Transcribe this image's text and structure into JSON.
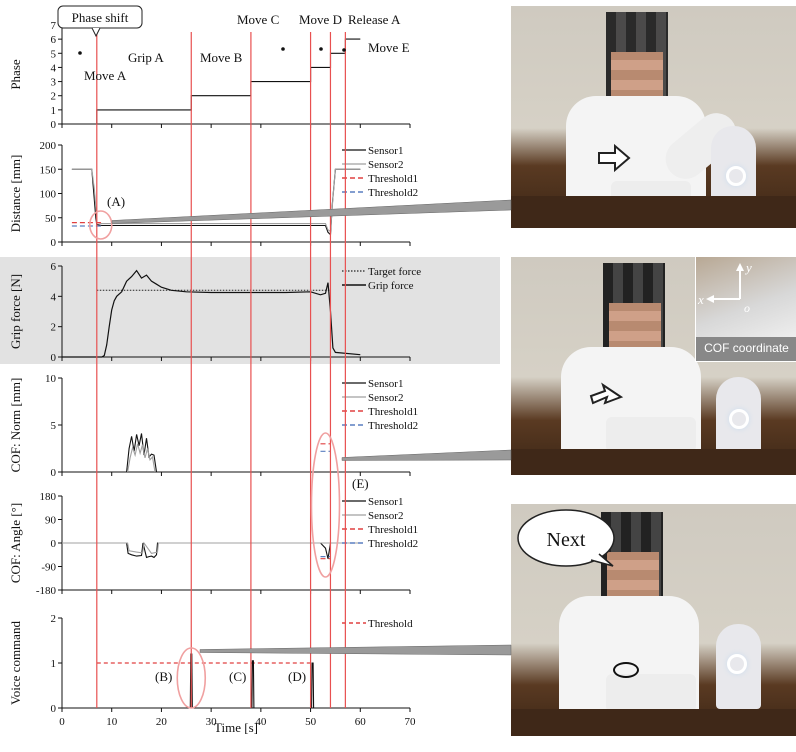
{
  "chart_data": [
    {
      "type": "line",
      "ylabel": "Phase",
      "ylim": [
        0,
        7
      ],
      "yticks": [
        0,
        1,
        2,
        3,
        4,
        5,
        6,
        7
      ],
      "series": [
        {
          "name": "Phase",
          "x": [
            0,
            7,
            7,
            26,
            26,
            38,
            38,
            50,
            50,
            54,
            54,
            57,
            57,
            60
          ],
          "y": [
            0,
            0,
            1,
            1,
            2,
            2,
            3,
            3,
            4,
            4,
            5,
            5,
            6,
            6
          ]
        }
      ],
      "annotations": [
        "Phase shift",
        "Move A",
        "Grip A",
        "Move B",
        "Move C",
        "Move D",
        "Release A",
        "Move E"
      ]
    },
    {
      "type": "line",
      "ylabel": "Distance [mm]",
      "ylim": [
        0,
        200
      ],
      "yticks": [
        0,
        50,
        100,
        150,
        200
      ],
      "series": [
        {
          "name": "Sensor1",
          "x": [
            2,
            6,
            6.4,
            6.8,
            7,
            8,
            50,
            53,
            53.5,
            54,
            54.4,
            55,
            60
          ],
          "y": [
            150,
            150,
            100,
            50,
            36,
            34,
            34,
            34,
            20,
            15,
            80,
            150,
            150
          ]
        },
        {
          "name": "Sensor2",
          "x": [
            2,
            6,
            6.5,
            6.9,
            7,
            8,
            50,
            53,
            53.5,
            54,
            54.5,
            55,
            60
          ],
          "y": [
            150,
            150,
            110,
            60,
            40,
            38,
            38,
            38,
            25,
            22,
            90,
            150,
            150
          ]
        },
        {
          "name": "Threshold1",
          "x": [
            2,
            8
          ],
          "y": [
            40,
            40
          ]
        },
        {
          "name": "Threshold2",
          "x": [
            2,
            8
          ],
          "y": [
            33,
            33
          ]
        }
      ],
      "annotations": [
        "(A)"
      ]
    },
    {
      "type": "line",
      "ylabel": "Grip force [N]",
      "ylim": [
        0,
        6
      ],
      "yticks": [
        0,
        2,
        4,
        6
      ],
      "series": [
        {
          "name": "Target force",
          "x": [
            7,
            54
          ],
          "y": [
            4.4,
            4.4
          ]
        },
        {
          "name": "Grip force",
          "x": [
            0,
            8,
            8.5,
            9,
            9.5,
            10,
            10.5,
            11,
            12,
            13,
            14,
            15,
            16,
            17,
            18,
            19,
            20,
            22,
            25,
            30,
            35,
            40,
            45,
            50,
            52,
            53,
            53.5,
            54,
            54.5,
            55,
            60
          ],
          "y": [
            0,
            0,
            0.1,
            0.8,
            2,
            3.1,
            3.7,
            4,
            4.3,
            5,
            5.3,
            5.7,
            5.2,
            5.4,
            5,
            4.8,
            4.6,
            4.4,
            4.3,
            4.25,
            4.25,
            4.25,
            4.25,
            4.3,
            4.1,
            4.2,
            4.9,
            3,
            0.6,
            0.3,
            0.15
          ]
        }
      ]
    },
    {
      "type": "line",
      "ylabel": "COF: Norm [mm]",
      "ylim": [
        0,
        10
      ],
      "yticks": [
        0,
        5,
        10
      ],
      "series": [
        {
          "name": "Sensor1",
          "x": [
            13,
            13.5,
            14,
            14.5,
            15,
            15.5,
            16,
            16.5,
            17,
            17.5,
            18,
            18.5,
            19
          ],
          "y": [
            0,
            2.5,
            3.8,
            2.2,
            4,
            2.8,
            4.1,
            1.8,
            3.6,
            1.6,
            1.9,
            1.8,
            0
          ]
        },
        {
          "name": "Sensor2",
          "x": [
            13.2,
            13.7,
            14.2,
            14.7,
            15.2,
            15.7,
            16.2,
            16.7,
            17.2,
            17.7,
            18.2,
            18.7
          ],
          "y": [
            0,
            1.5,
            2.6,
            1.8,
            3,
            2,
            2.9,
            1.5,
            2.5,
            1.3,
            1.6,
            0
          ]
        },
        {
          "name": "Threshold1",
          "x": [
            52,
            54
          ],
          "y": [
            3,
            3
          ]
        },
        {
          "name": "Threshold2",
          "x": [
            52,
            54
          ],
          "y": [
            2.2,
            2.2
          ]
        }
      ],
      "annotations": [
        "(E)"
      ]
    },
    {
      "type": "line",
      "ylabel": "COF: Angle [°]",
      "ylim": [
        -180,
        180
      ],
      "yticks": [
        -180,
        -90,
        0,
        90,
        180
      ],
      "series": [
        {
          "name": "Sensor1",
          "x": [
            0,
            13,
            13.3,
            14,
            15,
            16,
            16.3,
            17,
            17.5,
            18,
            18.5,
            19,
            19.2,
            52,
            53,
            53.5,
            54,
            60
          ],
          "y": [
            0,
            0,
            -40,
            -45,
            -50,
            -48,
            0,
            -55,
            -52,
            -50,
            -55,
            -45,
            0,
            0,
            -20,
            -60,
            0,
            0
          ]
        },
        {
          "name": "Sensor2",
          "x": [
            0,
            13.2,
            13.5,
            15,
            16.2,
            16.5,
            18,
            19.2,
            19.4,
            60
          ],
          "y": [
            0,
            0,
            -30,
            -35,
            -38,
            0,
            -40,
            -35,
            0,
            0
          ]
        },
        {
          "name": "Threshold1",
          "x": [
            52,
            54
          ],
          "y": [
            -60,
            -60
          ]
        },
        {
          "name": "Threshold2",
          "x": [
            52,
            54
          ],
          "y": [
            -52,
            -52
          ]
        }
      ]
    },
    {
      "type": "line",
      "ylabel": "Voice command",
      "xlabel": "Time [s]",
      "ylim": [
        0,
        2
      ],
      "xlim": [
        0,
        70
      ],
      "yticks": [
        0,
        1,
        2
      ],
      "xticks": [
        0,
        10,
        20,
        30,
        40,
        50,
        60,
        70
      ],
      "series": [
        {
          "name": "Threshold",
          "x": [
            7,
            50
          ],
          "y": [
            1,
            1
          ]
        },
        {
          "name": "Voice",
          "x": [
            0,
            25.8,
            25.9,
            26.1,
            26.2,
            38.2,
            38.3,
            38.5,
            38.6,
            50.2,
            50.3,
            50.5,
            50.6,
            60
          ],
          "y": [
            0,
            0,
            1.2,
            1.2,
            0,
            0,
            1.05,
            1.05,
            0,
            0,
            1,
            1,
            0,
            0
          ]
        }
      ],
      "annotations": [
        "(B)",
        "(C)",
        "(D)"
      ]
    }
  ],
  "phase_shift_times": [
    7,
    26,
    38,
    50,
    54,
    57
  ],
  "legend_labels": {
    "distance": [
      "Sensor1",
      "Sensor2",
      "Threshold1",
      "Threshold2"
    ],
    "grip": [
      "Target force",
      "Grip force"
    ],
    "norm": [
      "Sensor1",
      "Sensor2",
      "Threshold1",
      "Threshold2"
    ],
    "angle": [
      "Sensor1",
      "Sensor2",
      "Threshold1",
      "Threshold2"
    ],
    "voice": [
      "Threshold"
    ]
  },
  "photos": {
    "inset_caption": "COF coordinate",
    "inset_axis_x": "x",
    "inset_axis_y": "y",
    "inset_origin": "o",
    "speech_text": "Next"
  },
  "colors": {
    "shift_line": "#e85050",
    "threshold1": "#e04040",
    "threshold2": "#5a7fc0",
    "sensor2": "#a0a0a0",
    "highlight": "#f0a0a0",
    "shade": "#e2e2e2"
  }
}
